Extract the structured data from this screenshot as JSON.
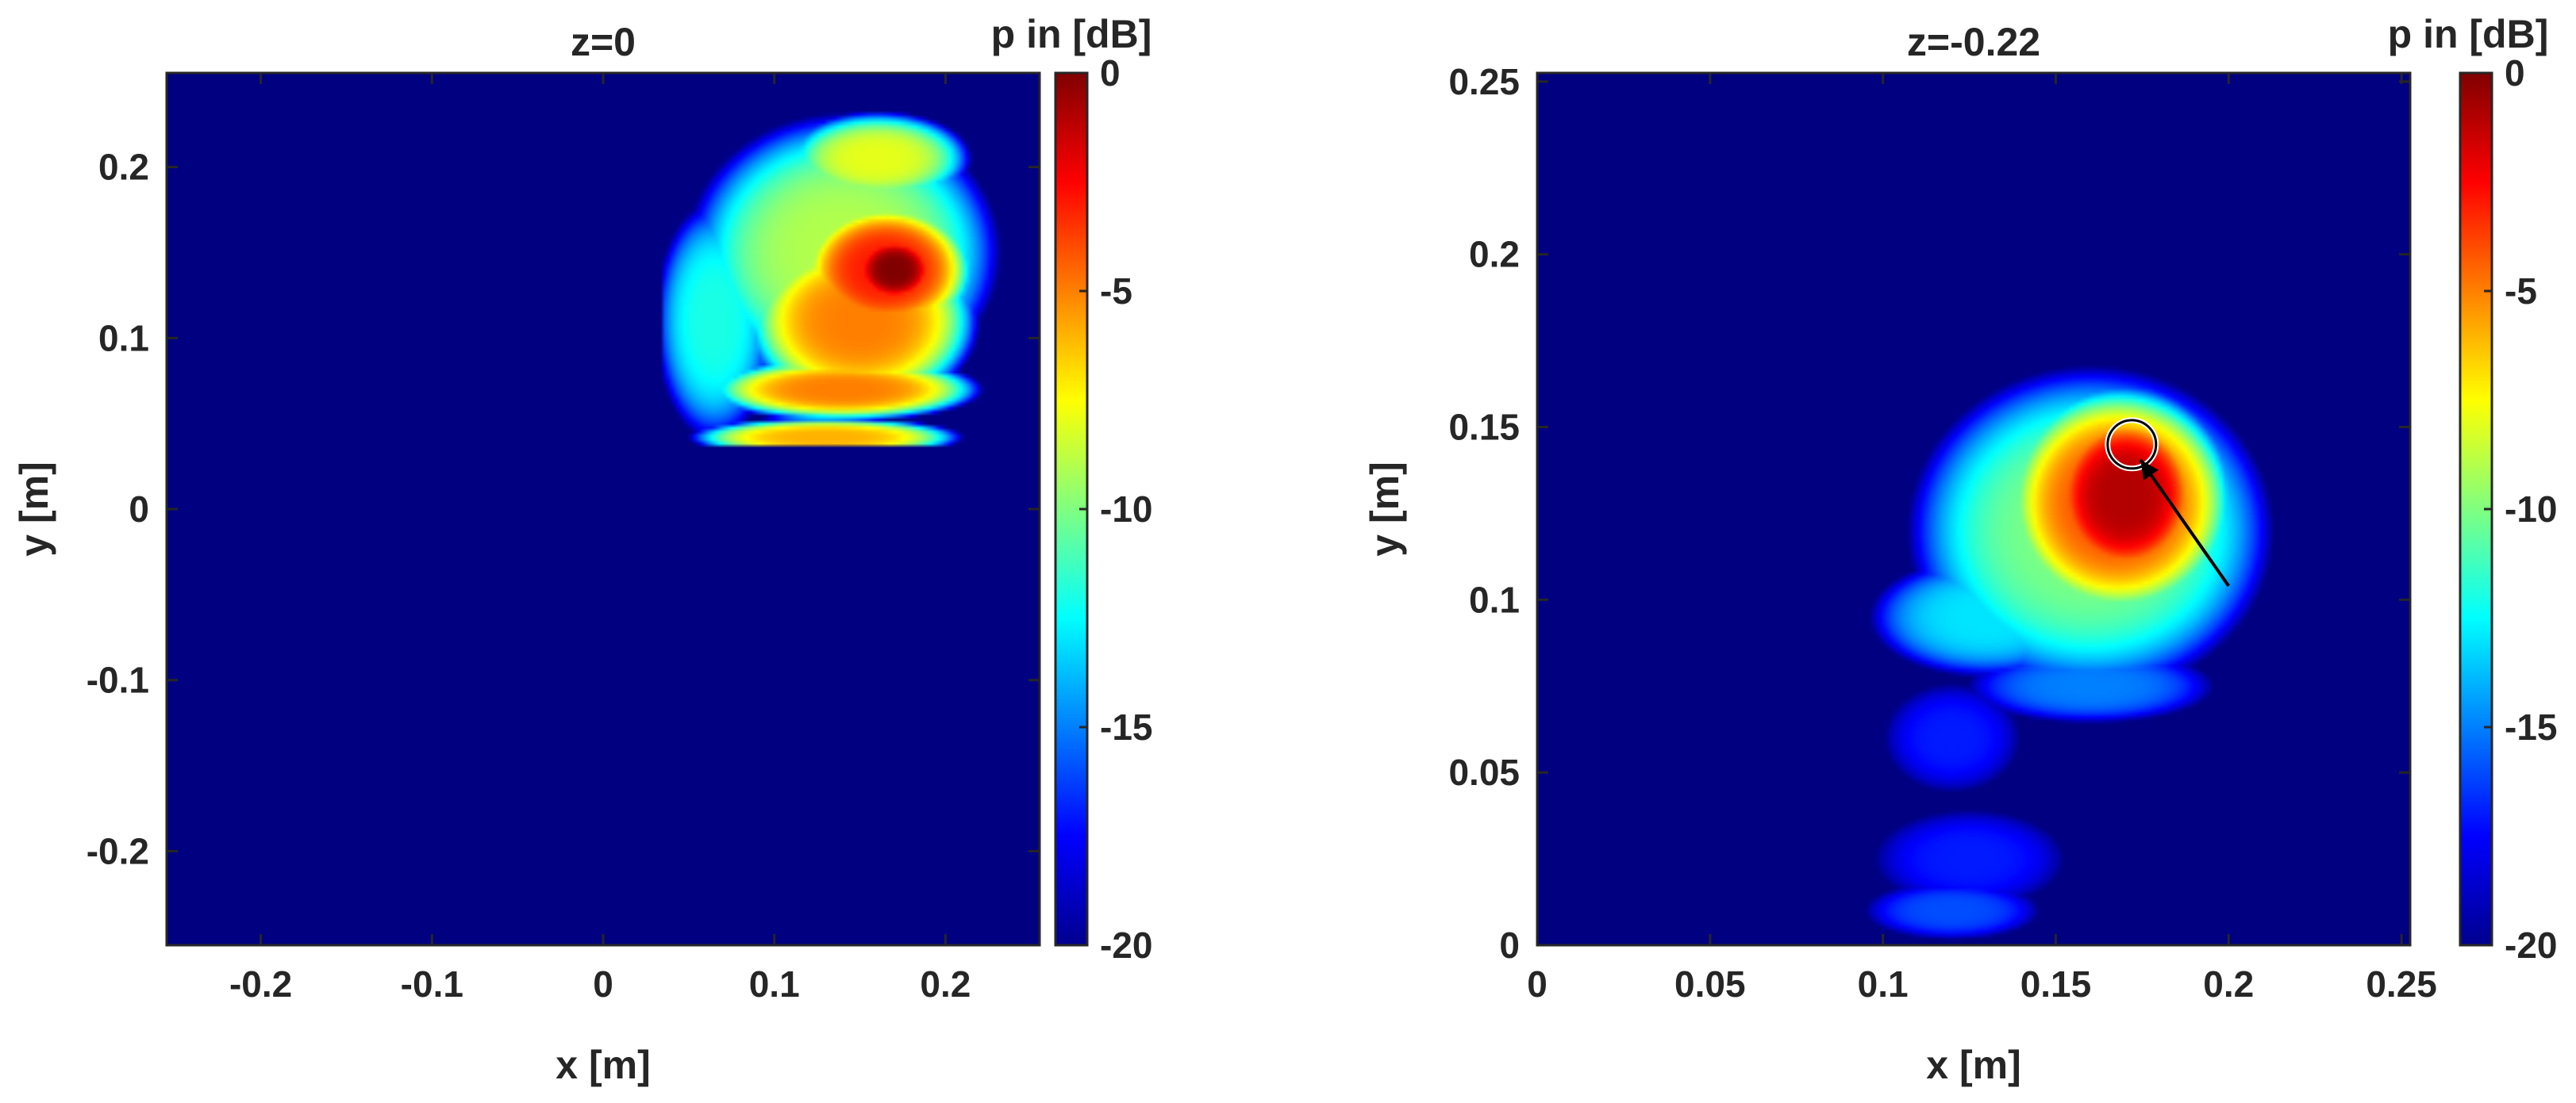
{
  "chart_data": [
    {
      "type": "heatmap",
      "title": "z=0",
      "xlabel": "x [m]",
      "ylabel": "y [m]",
      "xlim": [
        -0.255,
        0.255
      ],
      "ylim": [
        -0.255,
        0.255
      ],
      "xticks": [
        -0.2,
        -0.1,
        0,
        0.1,
        0.2
      ],
      "xtick_labels": [
        "-0.2",
        "-0.1",
        "0",
        "0.1",
        "0.2"
      ],
      "yticks": [
        -0.2,
        -0.1,
        0,
        0.1,
        0.2
      ],
      "ytick_labels": [
        "-0.2",
        "-0.1",
        "0",
        "0.1",
        "0.2"
      ],
      "colorbar": {
        "label": "p in [dB]",
        "range": [
          -20,
          0
        ],
        "ticks": [
          0,
          -5,
          -10,
          -15,
          -20
        ],
        "tick_labels": [
          "0",
          "-5",
          "-10",
          "-15",
          "-20"
        ],
        "colormap": "jet"
      },
      "background_level_db": -20,
      "measured_region": {
        "x": [
          0.035,
          0.24
        ],
        "y": [
          0.037,
          0.238
        ]
      },
      "blobs": [
        {
          "x": 0.14,
          "y": 0.15,
          "sx": 0.085,
          "sy": 0.075,
          "db": -9
        },
        {
          "x": 0.065,
          "y": 0.11,
          "sx": 0.035,
          "sy": 0.07,
          "db": -12
        },
        {
          "x": 0.15,
          "y": 0.11,
          "sx": 0.06,
          "sy": 0.045,
          "db": -5
        },
        {
          "x": 0.165,
          "y": 0.14,
          "sx": 0.045,
          "sy": 0.035,
          "db": -3
        },
        {
          "x": 0.17,
          "y": 0.14,
          "sx": 0.022,
          "sy": 0.018,
          "db": 0
        },
        {
          "x": 0.14,
          "y": 0.07,
          "sx": 0.07,
          "sy": 0.016,
          "db": -5
        },
        {
          "x": 0.13,
          "y": 0.042,
          "sx": 0.07,
          "sy": 0.01,
          "db": -6
        },
        {
          "x": 0.16,
          "y": 0.205,
          "sx": 0.05,
          "sy": 0.025,
          "db": -8
        }
      ]
    },
    {
      "type": "heatmap",
      "title": "z=-0.22",
      "xlabel": "x [m]",
      "ylabel": "y [m]",
      "xlim": [
        0,
        0.2525
      ],
      "ylim": [
        0,
        0.2525
      ],
      "xticks": [
        0,
        0.05,
        0.1,
        0.15,
        0.2,
        0.25
      ],
      "xtick_labels": [
        "0",
        "0.05",
        "0.1",
        "0.15",
        "0.2",
        "0.25"
      ],
      "yticks": [
        0,
        0.05,
        0.1,
        0.15,
        0.2,
        0.25
      ],
      "ytick_labels": [
        "0",
        "0.05",
        "0.1",
        "0.15",
        "0.2",
        "0.25"
      ],
      "colorbar": {
        "label": "p in [dB]",
        "range": [
          -20,
          0
        ],
        "ticks": [
          0,
          -5,
          -10,
          -15,
          -20
        ],
        "tick_labels": [
          "0",
          "-5",
          "-10",
          "-15",
          "-20"
        ],
        "colormap": "jet"
      },
      "background_level_db": -20,
      "blobs": [
        {
          "x": 0.16,
          "y": 0.12,
          "sx": 0.05,
          "sy": 0.045,
          "db": -10
        },
        {
          "x": 0.13,
          "y": 0.095,
          "sx": 0.035,
          "sy": 0.018,
          "db": -13
        },
        {
          "x": 0.168,
          "y": 0.128,
          "sx": 0.03,
          "sy": 0.03,
          "db": -4
        },
        {
          "x": 0.17,
          "y": 0.13,
          "sx": 0.02,
          "sy": 0.022,
          "db": -1
        },
        {
          "x": 0.16,
          "y": 0.075,
          "sx": 0.04,
          "sy": 0.012,
          "db": -15
        },
        {
          "x": 0.12,
          "y": 0.06,
          "sx": 0.025,
          "sy": 0.02,
          "db": -17
        },
        {
          "x": 0.125,
          "y": 0.025,
          "sx": 0.035,
          "sy": 0.018,
          "db": -17
        },
        {
          "x": 0.12,
          "y": 0.01,
          "sx": 0.03,
          "sy": 0.01,
          "db": -16
        }
      ],
      "annotations": [
        {
          "type": "circle",
          "x": 0.172,
          "y": 0.145,
          "r": 0.007
        },
        {
          "type": "arrow",
          "from": [
            0.2,
            0.104
          ],
          "to": [
            0.1745,
            0.1405
          ]
        }
      ]
    }
  ]
}
